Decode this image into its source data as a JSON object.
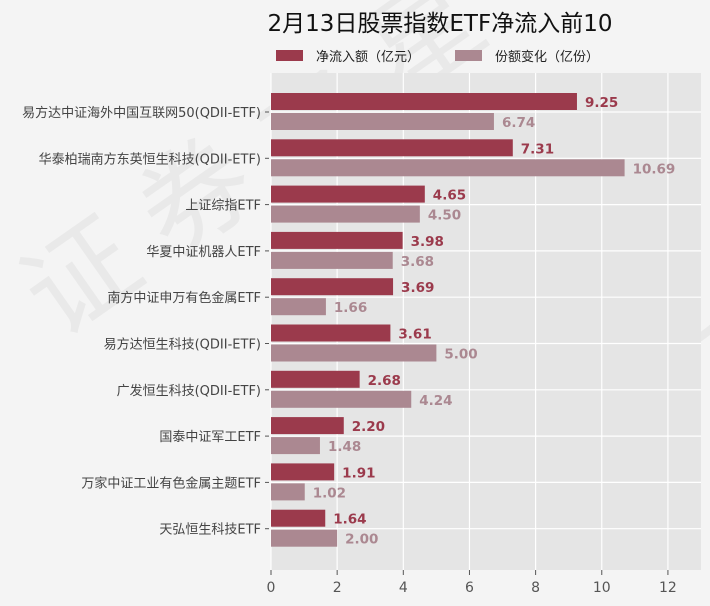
{
  "chart_data": {
    "type": "bar",
    "orientation": "horizontal",
    "title": "2月13日股票指数ETF净流入前10",
    "categories": [
      "易方达中证海外中国互联网50(QDII-ETF)",
      "华泰柏瑞南方东英恒生科技(QDII-ETF)",
      "上证综指ETF",
      "华夏中证机器人ETF",
      "南方中证申万有色金属ETF",
      "易方达恒生科技(QDII-ETF)",
      "广发恒生科技(QDII-ETF)",
      "国泰中证军工ETF",
      "万家中证工业有色金属主题ETF",
      "天弘恒生科技ETF"
    ],
    "series": [
      {
        "name": "净流入额（亿元）",
        "color": "#9b3a4c",
        "values": [
          9.25,
          7.31,
          4.65,
          3.98,
          3.69,
          3.61,
          2.68,
          2.2,
          1.91,
          1.64
        ],
        "labels": [
          "9.25",
          "7.31",
          "4.65",
          "3.98",
          "3.69",
          "3.61",
          "2.68",
          "2.20",
          "1.91",
          "1.64"
        ]
      },
      {
        "name": "份额变化（亿份）",
        "color": "#ab8891",
        "values": [
          6.74,
          10.69,
          4.5,
          3.68,
          1.66,
          5.0,
          4.24,
          1.48,
          1.02,
          2.0
        ],
        "labels": [
          "6.74",
          "10.69",
          "4.50",
          "3.68",
          "1.66",
          "5.00",
          "4.24",
          "1.48",
          "1.02",
          "2.00"
        ]
      }
    ],
    "xlim": [
      0,
      13
    ],
    "xticks": [
      "0",
      "2",
      "4",
      "6",
      "8",
      "10",
      "12"
    ],
    "xlabel": "",
    "ylabel": "",
    "grid": true,
    "legend": "top-center"
  },
  "watermark": "证券之星"
}
